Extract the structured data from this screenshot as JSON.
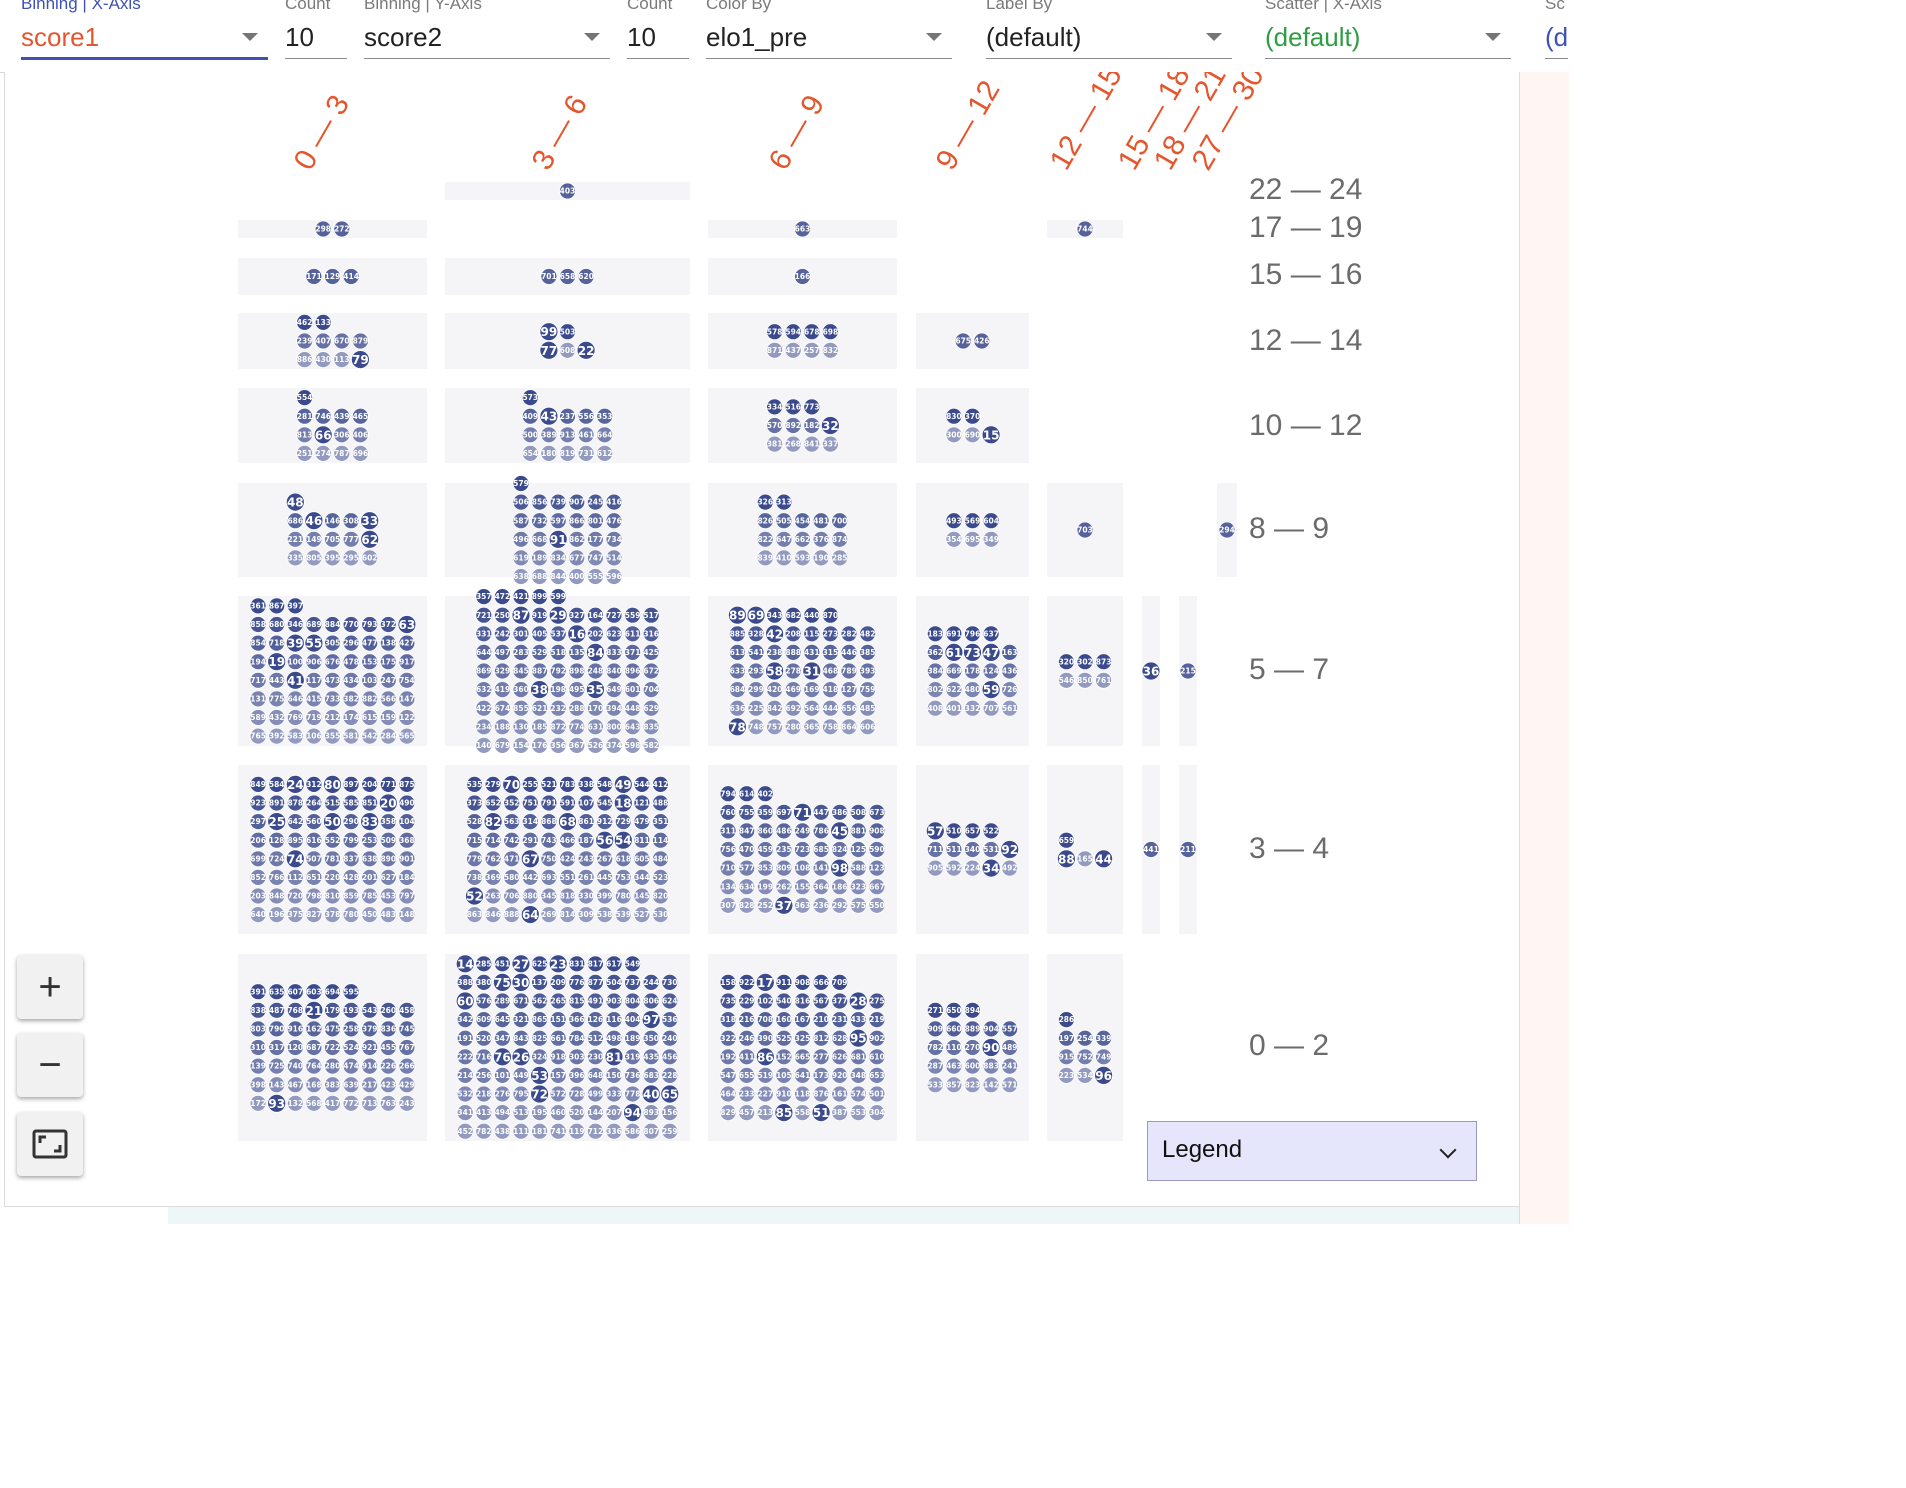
{
  "toolbar": {
    "fields": [
      {
        "label": "Binning | X-Axis",
        "value": "score1"
      },
      {
        "label": "Count",
        "value": "10"
      },
      {
        "label": "Binning | Y-Axis",
        "value": "score2"
      },
      {
        "label": "Count",
        "value": "10"
      },
      {
        "label": "Color By",
        "value": "elo1_pre"
      },
      {
        "label": "Label By",
        "value": "(default)"
      },
      {
        "label": "Scatter | X-Axis",
        "value": "(default)"
      },
      {
        "label": "Sc",
        "value": "(d"
      }
    ]
  },
  "columns": [
    "0 — 3",
    "3 — 6",
    "6 — 9",
    "9 — 12",
    "12 — 15",
    "15 — 18",
    "18 — 21",
    "27 — 30"
  ],
  "rows": [
    "22 — 24",
    "17 — 19",
    "15 — 16",
    "12 — 14",
    "10 — 12",
    "8 — 9",
    "5 — 7",
    "3 — 4",
    "0 — 2"
  ],
  "colors": {
    "dot_dark": "#3a4a8c",
    "dot_light": "#a2a8c8",
    "cell_bg": "#f5f5f7",
    "x_header": "#e4572e",
    "y_header": "#6b6b6b"
  },
  "cells": [
    {
      "row": 0,
      "col": 1,
      "labels": [
        "403"
      ]
    },
    {
      "row": 1,
      "col": 0,
      "labels": [
        "298",
        "272"
      ]
    },
    {
      "row": 1,
      "col": 2,
      "labels": [
        "663"
      ]
    },
    {
      "row": 1,
      "col": 4,
      "labels": [
        "744"
      ]
    },
    {
      "row": 2,
      "col": 0,
      "labels": [
        "171",
        "129",
        "414"
      ]
    },
    {
      "row": 2,
      "col": 1,
      "labels": [
        "701",
        "658",
        "620"
      ]
    },
    {
      "row": 2,
      "col": 2,
      "labels": [
        "166"
      ]
    },
    {
      "row": 3,
      "col": 0,
      "labels": [
        "462",
        "133",
        "239",
        "407",
        "670",
        "879",
        "886",
        "430",
        "113",
        "79"
      ]
    },
    {
      "row": 3,
      "col": 1,
      "labels": [
        "99",
        "503",
        "77",
        "608",
        "22"
      ]
    },
    {
      "row": 3,
      "col": 2,
      "labels": [
        "578",
        "594",
        "678",
        "698",
        "871",
        "437",
        "257",
        "832"
      ]
    },
    {
      "row": 3,
      "col": 3,
      "labels": [
        "675",
        "426"
      ]
    },
    {
      "row": 4,
      "col": 0,
      "labels": [
        "554",
        "281",
        "746",
        "439",
        "465",
        "813",
        "66",
        "306",
        "406",
        "251",
        "274",
        "787",
        "696"
      ]
    },
    {
      "row": 4,
      "col": 1,
      "labels": [
        "573",
        "409",
        "43",
        "237",
        "556",
        "353",
        "500",
        "389",
        "913",
        "461",
        "664",
        "654",
        "180",
        "819",
        "731",
        "612"
      ]
    },
    {
      "row": 4,
      "col": 2,
      "labels": [
        "334",
        "516",
        "773",
        "570",
        "892",
        "182",
        "32",
        "381",
        "268",
        "841",
        "337"
      ]
    },
    {
      "row": 4,
      "col": 3,
      "labels": [
        "830",
        "370",
        "300",
        "690",
        "15"
      ]
    },
    {
      "row": 5,
      "col": 0,
      "labels": [
        "48",
        "686",
        "46",
        "146",
        "308",
        "33",
        "221",
        "149",
        "705",
        "777",
        "62",
        "335",
        "805",
        "395",
        "295",
        "602"
      ]
    },
    {
      "row": 5,
      "col": 1,
      "labels": [
        "579",
        "506",
        "856",
        "739",
        "907",
        "245",
        "416",
        "587",
        "732",
        "597",
        "866",
        "801",
        "476",
        "496",
        "668",
        "91",
        "862",
        "177",
        "734",
        "619",
        "189",
        "834",
        "677",
        "747",
        "514",
        "638",
        "688",
        "844",
        "400",
        "555",
        "596"
      ]
    },
    {
      "row": 5,
      "col": 2,
      "labels": [
        "326",
        "313",
        "826",
        "505",
        "454",
        "481",
        "700",
        "822",
        "647",
        "662",
        "376",
        "874",
        "839",
        "410",
        "593",
        "190",
        "285"
      ]
    },
    {
      "row": 5,
      "col": 3,
      "labels": [
        "493",
        "569",
        "604",
        "354",
        "695",
        "349"
      ]
    },
    {
      "row": 5,
      "col": 4,
      "labels": [
        "703"
      ]
    },
    {
      "row": 5,
      "col": 7,
      "labels": [
        "294"
      ]
    },
    {
      "row": 6,
      "col": 0,
      "labels": [
        "361",
        "867",
        "397",
        "858",
        "680",
        "346",
        "689",
        "884",
        "770",
        "793",
        "372",
        "63",
        "854",
        "718",
        "39",
        "55",
        "305",
        "296",
        "477",
        "138",
        "427",
        "194",
        "19",
        "100",
        "906",
        "676",
        "478",
        "153",
        "175",
        "917",
        "717",
        "443",
        "41",
        "117",
        "473",
        "434",
        "103",
        "247",
        "754",
        "131",
        "775",
        "646",
        "415",
        "733",
        "382",
        "882",
        "566",
        "147",
        "589",
        "432",
        "769",
        "719",
        "212",
        "174",
        "615",
        "159",
        "122",
        "765",
        "392",
        "583",
        "106",
        "355",
        "581",
        "542",
        "284",
        "565"
      ]
    },
    {
      "row": 6,
      "col": 1,
      "labels": [
        "357",
        "472",
        "421",
        "899",
        "599",
        "721",
        "250",
        "87",
        "919",
        "29",
        "327",
        "164",
        "727",
        "559",
        "517",
        "331",
        "242",
        "301",
        "405",
        "537",
        "16",
        "202",
        "623",
        "611",
        "316",
        "644",
        "497",
        "283",
        "529",
        "518",
        "135",
        "84",
        "833",
        "371",
        "425",
        "869",
        "329",
        "845",
        "887",
        "792",
        "898",
        "248",
        "840",
        "896",
        "672",
        "632",
        "419",
        "360",
        "38",
        "198",
        "495",
        "35",
        "649",
        "601",
        "704",
        "422",
        "674",
        "855",
        "621",
        "232",
        "288",
        "170",
        "394",
        "448",
        "629",
        "234",
        "188",
        "130",
        "185",
        "872",
        "774",
        "631",
        "800",
        "643",
        "835",
        "140",
        "679",
        "154",
        "176",
        "356",
        "367",
        "526",
        "374",
        "598",
        "582"
      ]
    },
    {
      "row": 6,
      "col": 2,
      "labels": [
        "89",
        "69",
        "343",
        "682",
        "440",
        "870",
        "885",
        "328",
        "42",
        "208",
        "115",
        "273",
        "282",
        "482",
        "613",
        "541",
        "238",
        "888",
        "431",
        "315",
        "446",
        "385",
        "633",
        "293",
        "58",
        "278",
        "31",
        "468",
        "789",
        "393",
        "684",
        "299",
        "420",
        "469",
        "169",
        "418",
        "127",
        "759",
        "636",
        "225",
        "842",
        "692",
        "564",
        "444",
        "656",
        "485",
        "78",
        "748",
        "757",
        "280",
        "365",
        "758",
        "864",
        "606"
      ]
    },
    {
      "row": 6,
      "col": 3,
      "labels": [
        "183",
        "691",
        "796",
        "637",
        "362",
        "61",
        "73",
        "47",
        "163",
        "384",
        "669",
        "178",
        "124",
        "436",
        "802",
        "622",
        "480",
        "59",
        "726",
        "408",
        "401",
        "332",
        "707",
        "561"
      ]
    },
    {
      "row": 6,
      "col": 4,
      "labels": [
        "320",
        "302",
        "873",
        "546",
        "850",
        "761"
      ]
    },
    {
      "row": 6,
      "col": 5,
      "labels": [
        "36"
      ]
    },
    {
      "row": 6,
      "col": 6,
      "labels": [
        "215"
      ]
    },
    {
      "row": 7,
      "col": 0,
      "labels": [
        "849",
        "584",
        "24",
        "312",
        "80",
        "897",
        "204",
        "771",
        "875",
        "923",
        "891",
        "878",
        "264",
        "515",
        "585",
        "851",
        "20",
        "490",
        "297",
        "25",
        "642",
        "560",
        "50",
        "290",
        "83",
        "358",
        "104",
        "206",
        "128",
        "895",
        "616",
        "552",
        "799",
        "253",
        "509",
        "368",
        "699",
        "724",
        "74",
        "507",
        "781",
        "837",
        "638",
        "890",
        "901",
        "852",
        "766",
        "112",
        "651",
        "220",
        "428",
        "201",
        "627",
        "184",
        "203",
        "848",
        "720",
        "798",
        "810",
        "859",
        "785",
        "453",
        "797",
        "640",
        "196",
        "375",
        "827",
        "378",
        "780",
        "450",
        "483",
        "148"
      ]
    },
    {
      "row": 7,
      "col": 1,
      "labels": [
        "535",
        "279",
        "70",
        "255",
        "521",
        "783",
        "338",
        "548",
        "49",
        "544",
        "412",
        "373",
        "652",
        "352",
        "751",
        "791",
        "591",
        "107",
        "545",
        "18",
        "121",
        "488",
        "528",
        "82",
        "563",
        "314",
        "868",
        "68",
        "861",
        "912",
        "729",
        "479",
        "351",
        "715",
        "714",
        "742",
        "291",
        "743",
        "466",
        "187",
        "56",
        "54",
        "811",
        "114",
        "779",
        "762",
        "471",
        "67",
        "750",
        "424",
        "243",
        "267",
        "618",
        "605",
        "484",
        "738",
        "369",
        "580",
        "442",
        "693",
        "551",
        "261",
        "445",
        "753",
        "344",
        "523",
        "52",
        "263",
        "706",
        "880",
        "345",
        "818",
        "330",
        "399",
        "780",
        "145",
        "820",
        "863",
        "846",
        "888",
        "64",
        "269",
        "814",
        "309",
        "538",
        "539",
        "527",
        "530"
      ]
    },
    {
      "row": 7,
      "col": 2,
      "labels": [
        "794",
        "614",
        "402",
        "760",
        "755",
        "359",
        "697",
        "71",
        "447",
        "386",
        "508",
        "673",
        "311",
        "847",
        "860",
        "486",
        "249",
        "786",
        "45",
        "881",
        "908",
        "756",
        "470",
        "459",
        "235",
        "723",
        "685",
        "824",
        "125",
        "590",
        "710",
        "577",
        "853",
        "809",
        "108",
        "141",
        "98",
        "588",
        "123",
        "134",
        "634",
        "199",
        "262",
        "155",
        "364",
        "186",
        "323",
        "667",
        "307",
        "828",
        "252",
        "37",
        "363",
        "236",
        "292",
        "575",
        "550"
      ]
    },
    {
      "row": 7,
      "col": 3,
      "labels": [
        "57",
        "510",
        "657",
        "522",
        "711",
        "511",
        "340",
        "531",
        "92",
        "905",
        "592",
        "224",
        "34",
        "492"
      ]
    },
    {
      "row": 7,
      "col": 4,
      "labels": [
        "659",
        "88",
        "165",
        "44"
      ]
    },
    {
      "row": 7,
      "col": 5,
      "labels": [
        "441"
      ]
    },
    {
      "row": 7,
      "col": 6,
      "labels": [
        "211"
      ]
    },
    {
      "row": 8,
      "col": 0,
      "labels": [
        "391",
        "635",
        "607",
        "603",
        "694",
        "595",
        "838",
        "487",
        "768",
        "21",
        "179",
        "193",
        "543",
        "260",
        "458",
        "803",
        "790",
        "916",
        "162",
        "475",
        "258",
        "379",
        "836",
        "745",
        "310",
        "317",
        "120",
        "687",
        "722",
        "524",
        "921",
        "455",
        "767",
        "139",
        "725",
        "740",
        "764",
        "280",
        "474",
        "914",
        "226",
        "266",
        "398",
        "143",
        "467",
        "168",
        "383",
        "639",
        "217",
        "423",
        "429",
        "172",
        "93",
        "132",
        "568",
        "417",
        "772",
        "713",
        "763",
        "243"
      ]
    },
    {
      "row": 8,
      "col": 1,
      "labels": [
        "14",
        "285",
        "451",
        "27",
        "625",
        "23",
        "831",
        "817",
        "617",
        "549",
        "388",
        "380",
        "75",
        "30",
        "137",
        "209",
        "776",
        "877",
        "504",
        "737",
        "244",
        "730",
        "60",
        "576",
        "289",
        "671",
        "562",
        "265",
        "815",
        "491",
        "903",
        "804",
        "806",
        "624",
        "342",
        "609",
        "645",
        "321",
        "865",
        "151",
        "366",
        "126",
        "116",
        "404",
        "97",
        "536",
        "191",
        "520",
        "347",
        "843",
        "825",
        "661",
        "784",
        "512",
        "498",
        "189",
        "350",
        "240",
        "222",
        "716",
        "76",
        "26",
        "324",
        "918",
        "303",
        "230",
        "81",
        "319",
        "435",
        "456",
        "214",
        "256",
        "101",
        "449",
        "53",
        "157",
        "396",
        "648",
        "150",
        "736",
        "683",
        "228",
        "532",
        "218",
        "276",
        "795",
        "72",
        "572",
        "728",
        "499",
        "333",
        "778",
        "40",
        "65",
        "341",
        "413",
        "494",
        "513",
        "195",
        "460",
        "520",
        "144",
        "207",
        "94",
        "893",
        "156",
        "452",
        "782",
        "438",
        "111",
        "181",
        "741",
        "119",
        "712",
        "336",
        "586",
        "807",
        "259"
      ]
    },
    {
      "row": 8,
      "col": 2,
      "labels": [
        "158",
        "922",
        "17",
        "911",
        "908",
        "666",
        "709",
        "735",
        "229",
        "102",
        "540",
        "816",
        "567",
        "377",
        "28",
        "275",
        "318",
        "216",
        "708",
        "160",
        "167",
        "210",
        "231",
        "433",
        "219",
        "322",
        "246",
        "390",
        "525",
        "325",
        "812",
        "628",
        "95",
        "902",
        "192",
        "411",
        "86",
        "152",
        "665",
        "277",
        "626",
        "681",
        "610",
        "547",
        "655",
        "519",
        "105",
        "641",
        "173",
        "920",
        "348",
        "653",
        "464",
        "233",
        "227",
        "910",
        "118",
        "876",
        "161",
        "574",
        "501",
        "829",
        "457",
        "213",
        "85",
        "558",
        "51",
        "387",
        "553",
        "304"
      ]
    },
    {
      "row": 8,
      "col": 3,
      "labels": [
        "271",
        "650",
        "894",
        "909",
        "660",
        "889",
        "904",
        "557",
        "782",
        "110",
        "270",
        "90",
        "489",
        "287",
        "463",
        "600",
        "883",
        "241",
        "533",
        "857",
        "823",
        "142",
        "571"
      ]
    },
    {
      "row": 8,
      "col": 4,
      "labels": [
        "286",
        "197",
        "254",
        "339",
        "915",
        "752",
        "749",
        "223",
        "534",
        "96"
      ]
    }
  ],
  "controls": {
    "zoom_in": "+",
    "zoom_out": "−"
  },
  "legend": {
    "label": "Legend"
  }
}
